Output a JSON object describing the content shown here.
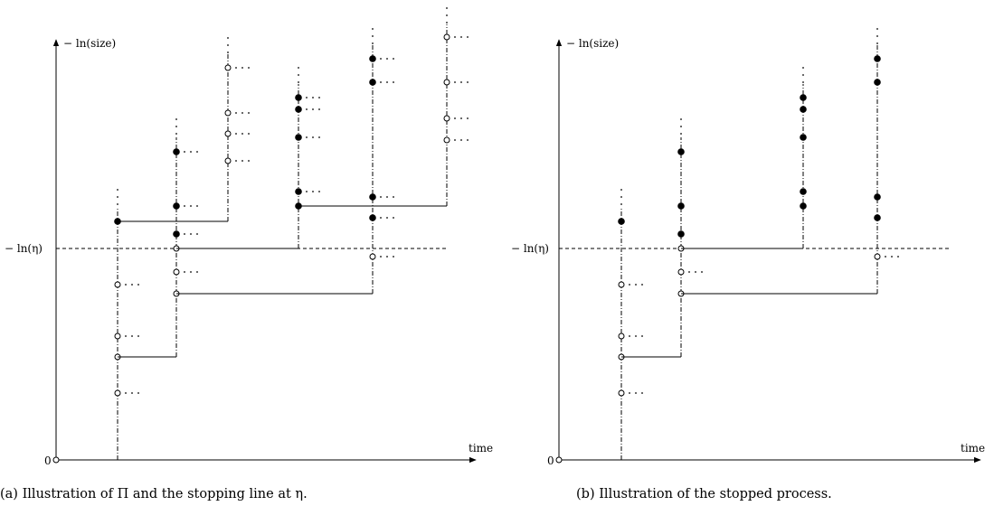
{
  "panels": [
    {
      "id": "a",
      "y_label": "− ln(size)",
      "eta_label": "− ln(η)",
      "origin_label": "0",
      "x_label": "time",
      "caption": "(a) Illustration of Π and the stopping line at η.",
      "columns": [
        {
          "id": "c1",
          "points": [
            {
              "kind": "filled",
              "dots": false
            },
            {
              "kind": "open",
              "dots": true
            },
            {
              "kind": "open",
              "dots": true
            },
            {
              "kind": "open",
              "dots": false
            },
            {
              "kind": "open",
              "dots": true
            }
          ]
        },
        {
          "id": "c2",
          "points": [
            {
              "kind": "filled",
              "dots": true
            },
            {
              "kind": "filled",
              "dots": true
            },
            {
              "kind": "filled",
              "dots": true
            },
            {
              "kind": "open",
              "dots": false
            },
            {
              "kind": "open",
              "dots": true
            },
            {
              "kind": "open",
              "dots": false
            }
          ]
        },
        {
          "id": "c3",
          "points": [
            {
              "kind": "open",
              "dots": true
            },
            {
              "kind": "open",
              "dots": true
            },
            {
              "kind": "open",
              "dots": true
            },
            {
              "kind": "open",
              "dots": true
            }
          ]
        },
        {
          "id": "c4",
          "points": [
            {
              "kind": "filled",
              "dots": true
            },
            {
              "kind": "filled",
              "dots": true
            },
            {
              "kind": "filled",
              "dots": true
            },
            {
              "kind": "filled",
              "dots": true
            },
            {
              "kind": "filled",
              "dots": false
            }
          ]
        },
        {
          "id": "c5",
          "points": [
            {
              "kind": "filled",
              "dots": true
            },
            {
              "kind": "filled",
              "dots": true
            },
            {
              "kind": "filled",
              "dots": true
            },
            {
              "kind": "filled",
              "dots": true
            },
            {
              "kind": "open",
              "dots": true
            }
          ]
        },
        {
          "id": "c6",
          "points": [
            {
              "kind": "open",
              "dots": true
            },
            {
              "kind": "open",
              "dots": true
            },
            {
              "kind": "open",
              "dots": true
            },
            {
              "kind": "open",
              "dots": true
            }
          ]
        }
      ]
    },
    {
      "id": "b",
      "y_label": "− ln(size)",
      "eta_label": "− ln(η)",
      "origin_label": "0",
      "x_label": "time",
      "caption": "(b) Illustration of the stopped process.",
      "columns": [
        {
          "id": "c1",
          "points": [
            {
              "kind": "filled",
              "dots": false
            },
            {
              "kind": "open",
              "dots": true
            },
            {
              "kind": "open",
              "dots": true
            },
            {
              "kind": "open",
              "dots": false
            },
            {
              "kind": "open",
              "dots": true
            }
          ]
        },
        {
          "id": "c2",
          "points": [
            {
              "kind": "filled",
              "dots": false
            },
            {
              "kind": "filled",
              "dots": false
            },
            {
              "kind": "filled",
              "dots": false
            },
            {
              "kind": "open",
              "dots": false
            },
            {
              "kind": "open",
              "dots": true
            },
            {
              "kind": "open",
              "dots": false
            }
          ]
        },
        {
          "id": "c4",
          "points": [
            {
              "kind": "filled",
              "dots": false
            },
            {
              "kind": "filled",
              "dots": false
            },
            {
              "kind": "filled",
              "dots": false
            },
            {
              "kind": "filled",
              "dots": false
            },
            {
              "kind": "filled",
              "dots": false
            }
          ]
        },
        {
          "id": "c5",
          "points": [
            {
              "kind": "filled",
              "dots": false
            },
            {
              "kind": "filled",
              "dots": false
            },
            {
              "kind": "filled",
              "dots": false
            },
            {
              "kind": "filled",
              "dots": false
            },
            {
              "kind": "open",
              "dots": true
            }
          ]
        }
      ]
    }
  ]
}
